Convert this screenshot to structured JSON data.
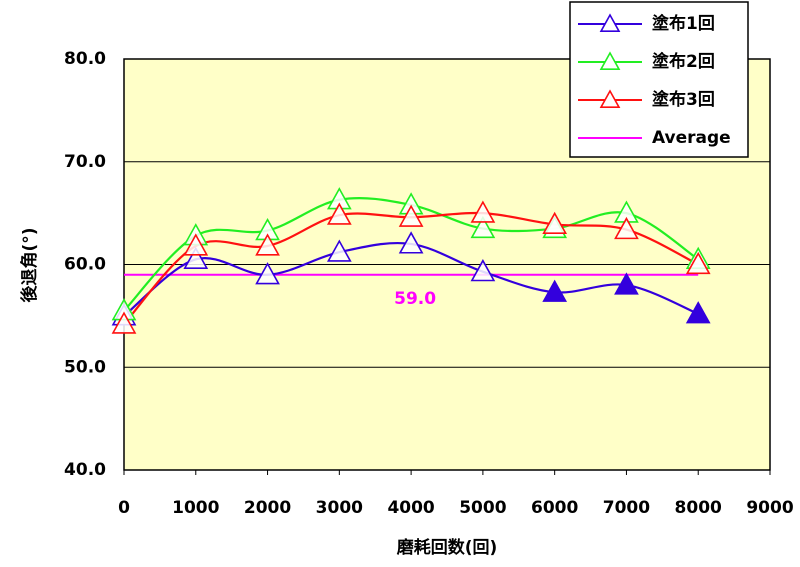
{
  "chart_data": {
    "type": "line",
    "xlabel": "磨耗回数(回)",
    "ylabel": "後退角(°)",
    "x": [
      0,
      1000,
      2000,
      3000,
      4000,
      5000,
      6000,
      7000,
      8000
    ],
    "series": [
      {
        "name": "塗布1回",
        "color": "#3300dd",
        "values": [
          55.0,
          60.5,
          59.0,
          61.2,
          62.0,
          59.3,
          57.3,
          58.0,
          55.2
        ],
        "marker_filled": [
          false,
          false,
          false,
          false,
          false,
          false,
          true,
          true,
          true
        ]
      },
      {
        "name": "塗布2回",
        "color": "#22ee22",
        "values": [
          55.5,
          62.8,
          63.3,
          66.3,
          65.8,
          63.5,
          63.5,
          65.0,
          60.5
        ],
        "marker_filled": [
          false,
          false,
          false,
          false,
          false,
          false,
          false,
          false,
          false
        ]
      },
      {
        "name": "塗布3回",
        "color": "#ff1111",
        "values": [
          54.2,
          61.8,
          61.8,
          64.8,
          64.6,
          65.0,
          63.9,
          63.4,
          60.0
        ],
        "marker_filled": [
          false,
          false,
          false,
          false,
          false,
          false,
          false,
          false,
          false
        ]
      }
    ],
    "average": {
      "name": "Average",
      "color": "#ff00ff",
      "value": 59.0,
      "value_label": "59.0"
    },
    "xlim": [
      0,
      9000
    ],
    "xticks": [
      0,
      1000,
      2000,
      3000,
      4000,
      5000,
      6000,
      7000,
      8000,
      9000
    ],
    "ylim": [
      40,
      80
    ],
    "yticks": [
      {
        "value": 40,
        "label": "40.0"
      },
      {
        "value": 50,
        "label": "50.0"
      },
      {
        "value": 60,
        "label": "60.0"
      },
      {
        "value": 70,
        "label": "70.0"
      },
      {
        "value": 80,
        "label": "80.0"
      }
    ],
    "grid": true,
    "plot_background": "#ffffc8",
    "legend": "top-right"
  }
}
